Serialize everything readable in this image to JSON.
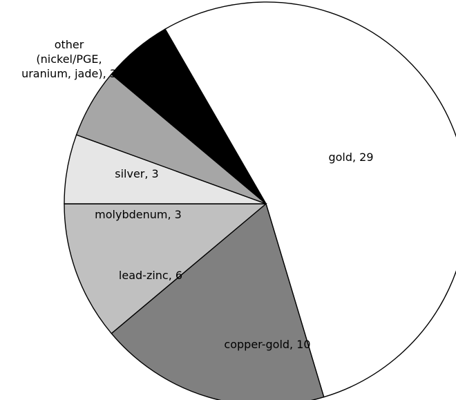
{
  "chart_data": {
    "type": "pie",
    "slices": [
      {
        "label": "gold, 29",
        "category": "gold",
        "value": 29,
        "color": "#ffffff"
      },
      {
        "label": "copper-gold, 10",
        "category": "copper-gold",
        "value": 10,
        "color": "#808080"
      },
      {
        "label": "lead-zinc, 6",
        "category": "lead-zinc",
        "value": 6,
        "color": "#c0c0c0"
      },
      {
        "label": "molybdenum, 3",
        "category": "molybdenum",
        "value": 3,
        "color": "#e6e6e6"
      },
      {
        "label": "silver, 3",
        "category": "silver",
        "value": 3,
        "color": "#a6a6a6"
      },
      {
        "label_lines": [
          "other",
          "(nickel/PGE,",
          "uranium, jade), 3"
        ],
        "category": "other",
        "value": 3,
        "color": "#000000"
      }
    ],
    "start": "top, 1/12 turn to the left",
    "direction": "clockwise"
  }
}
